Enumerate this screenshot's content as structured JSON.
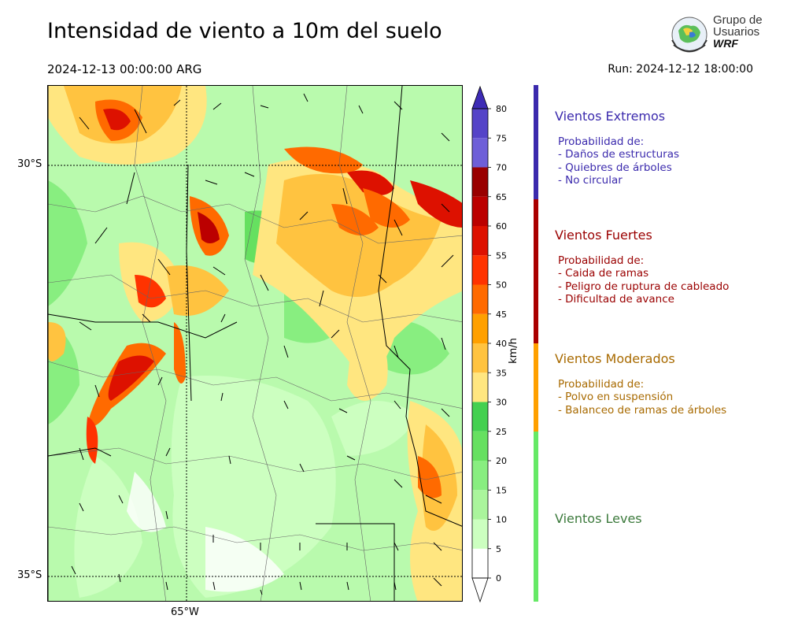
{
  "title": "Intensidad de viento a 10m del suelo",
  "valid_time": "2024-12-13 00:00:00 ARG",
  "run_time": "Run: 2024-12-12 18:00:00",
  "logo": {
    "line1": "Grupo de",
    "line2": "Usuarios",
    "line3": "WRF"
  },
  "map": {
    "lat_labels": [
      "30°S",
      "35°S"
    ],
    "lon_labels": [
      "65°W"
    ]
  },
  "colorbar": {
    "unit": "km/h",
    "ticks": [
      "0",
      "5",
      "10",
      "15",
      "20",
      "25",
      "30",
      "35",
      "40",
      "45",
      "50",
      "55",
      "60",
      "65",
      "70",
      "75",
      "80"
    ],
    "colors": [
      "#ffffff",
      "#ccffc0",
      "#aaf59c",
      "#88ee80",
      "#66e060",
      "#44d050",
      "#ffe680",
      "#ffc340",
      "#ffa000",
      "#ff6a00",
      "#ff3300",
      "#dd1100",
      "#bb0000",
      "#990000",
      "#6e5fd8",
      "#5544c8",
      "#3d2bb5"
    ]
  },
  "categories": [
    {
      "title": "Vientos Extremos",
      "color": "#3b2aad",
      "text_color": "#3b2aad",
      "lines": [
        "Probabilidad de:",
        "- Daños de estructuras",
        "- Quiebres de árboles",
        "- No circular"
      ]
    },
    {
      "title": "Vientos Fuertes",
      "color": "#aa0000",
      "text_color": "#9a0000",
      "lines": [
        "Probabilidad de:",
        "- Caida de ramas",
        "- Peligro de ruptura de cableado",
        "- Dificultad de avance"
      ]
    },
    {
      "title": "Vientos Moderados",
      "color": "#ffa000",
      "text_color": "#a86a00",
      "lines": [
        "Probabilidad de:",
        "- Polvo en suspensión",
        "- Balanceo de ramas de árboles"
      ]
    },
    {
      "title": "Vientos Leves",
      "color": "#66e966",
      "text_color": "#3c7a3c",
      "lines": []
    }
  ]
}
